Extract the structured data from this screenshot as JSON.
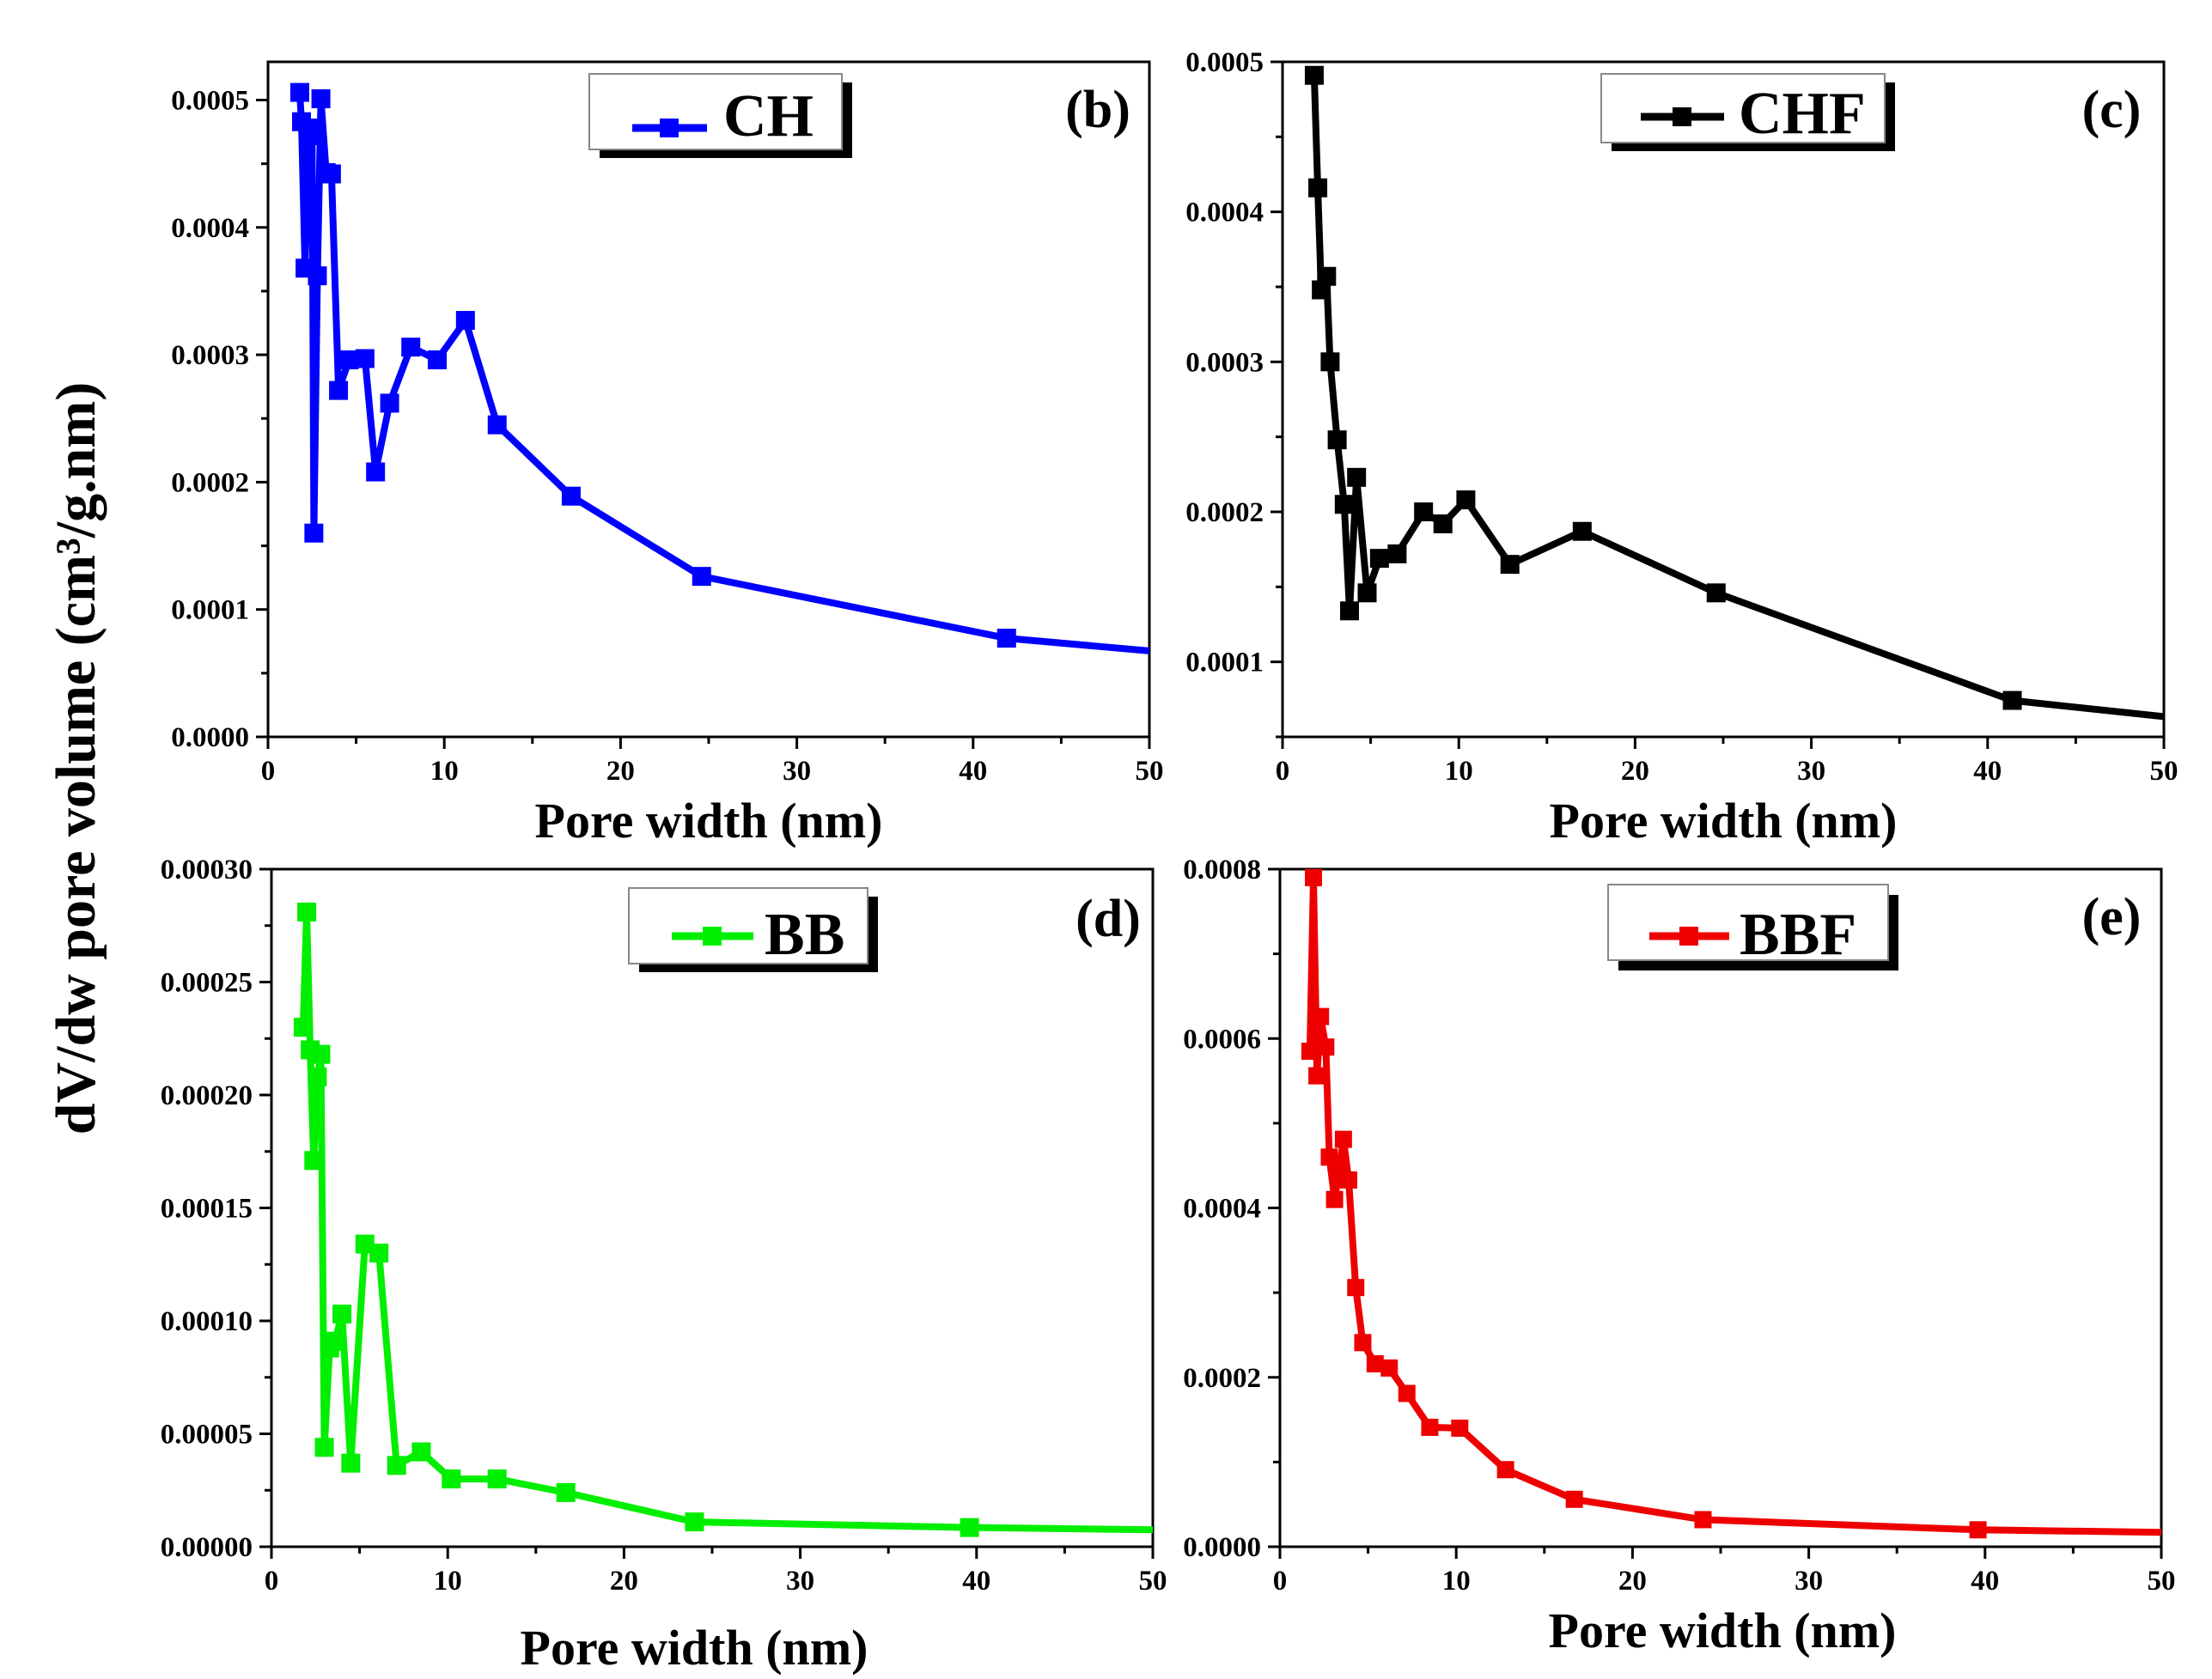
{
  "y_axis_title": "dV/dw pore volume (cm³/g.nm)",
  "chart_data": [
    {
      "type": "line",
      "tag": "(b)",
      "legend": "CH",
      "color": "#0000ff",
      "xlabel": "Pore width (nm)",
      "xlim": [
        0,
        50
      ],
      "ylim": [
        0,
        0.00053
      ],
      "xticks": [
        0,
        10,
        20,
        30,
        40,
        50
      ],
      "xtick_labels": [
        "0",
        "10",
        "20",
        "30",
        "40",
        "50"
      ],
      "yticks": [
        0,
        0.0001,
        0.0002,
        0.0003,
        0.0004,
        0.0005
      ],
      "ytick_labels": [
        "0.0000",
        "0.0001",
        "0.0002",
        "0.0003",
        "0.0004",
        "0.0005"
      ],
      "x": [
        1.8,
        1.9,
        2.1,
        2.3,
        2.5,
        2.6,
        2.8,
        3.0,
        3.3,
        3.6,
        4.0,
        4.6,
        5.5,
        6.1,
        6.9,
        8.1,
        9.6,
        11.2,
        13.0,
        17.2,
        24.6,
        41.9,
        50
      ],
      "y": [
        0.000506,
        0.000483,
        0.000368,
        0.000478,
        0.000472,
        0.00016,
        0.000362,
        0.000501,
        0.000443,
        0.000442,
        0.000272,
        0.000296,
        0.000297,
        0.000208,
        0.000262,
        0.000306,
        0.000296,
        0.000327,
        0.000245,
        0.000189,
        0.000126,
        7.75e-05,
        6.75e-05
      ],
      "marker_count": 22
    },
    {
      "type": "line",
      "tag": "(c)",
      "legend": "CHF",
      "color": "#000000",
      "xlabel": "Pore width (nm)",
      "xlim": [
        0,
        50
      ],
      "ylim": [
        5e-05,
        0.0005
      ],
      "xticks": [
        0,
        10,
        20,
        30,
        40,
        50
      ],
      "xtick_labels": [
        "0",
        "10",
        "20",
        "30",
        "40",
        "50"
      ],
      "yticks": [
        0.0001,
        0.0002,
        0.0003,
        0.0004,
        0.0005
      ],
      "ytick_labels": [
        "0.0001",
        "0.0002",
        "0.0003",
        "0.0004",
        "0.0005"
      ],
      "x": [
        1.8,
        2.0,
        2.2,
        2.5,
        2.7,
        3.1,
        3.5,
        3.8,
        4.2,
        4.8,
        5.5,
        6.5,
        8.0,
        9.1,
        10.4,
        12.9,
        17.0,
        24.6,
        41.4,
        50
      ],
      "y": [
        0.000491,
        0.000416,
        0.000348,
        0.000357,
        0.0003,
        0.000248,
        0.000205,
        0.000134,
        0.000223,
        0.000146,
        0.000169,
        0.000172,
        0.0002,
        0.000192,
        0.000208,
        0.000165,
        0.000187,
        0.000146,
        7.43e-05,
        6.35e-05
      ],
      "marker_count": 19
    },
    {
      "type": "line",
      "tag": "(d)",
      "legend": "BB",
      "color": "#00ee00",
      "xlabel": "Pore width (nm)",
      "xlim": [
        0,
        50
      ],
      "ylim": [
        0,
        0.0003
      ],
      "xticks": [
        0,
        10,
        20,
        30,
        40,
        50
      ],
      "xtick_labels": [
        "0",
        "10",
        "20",
        "30",
        "40",
        "50"
      ],
      "yticks": [
        0,
        5e-05,
        0.0001,
        0.00015,
        0.0002,
        0.00025,
        0.0003
      ],
      "ytick_labels": [
        "0.00000",
        "0.00005",
        "0.00010",
        "0.00015",
        "0.00020",
        "0.00025",
        "0.00030"
      ],
      "x": [
        1.8,
        2.0,
        2.2,
        2.4,
        2.6,
        2.8,
        3.0,
        3.3,
        3.6,
        4.0,
        4.5,
        5.3,
        6.1,
        7.1,
        8.5,
        10.2,
        12.8,
        16.7,
        24.0,
        39.6,
        50
      ],
      "y": [
        0.00023,
        0.000281,
        0.00022,
        0.000171,
        0.000208,
        0.000218,
        4.4e-05,
        8.8e-05,
        9.1e-05,
        0.000103,
        3.7e-05,
        0.000134,
        0.00013,
        3.6e-05,
        4.2e-05,
        3e-05,
        3e-05,
        2.4e-05,
        1.1e-05,
        8.5e-06,
        7.5e-06
      ],
      "marker_count": 20
    },
    {
      "type": "line",
      "tag": "(e)",
      "legend": "BBF",
      "color": "#ee0000",
      "xlabel": "Pore width (nm)",
      "xlim": [
        0,
        50
      ],
      "ylim": [
        0,
        0.0008
      ],
      "xticks": [
        0,
        10,
        20,
        30,
        40,
        50
      ],
      "xtick_labels": [
        "0",
        "10",
        "20",
        "30",
        "40",
        "50"
      ],
      "yticks": [
        0,
        0.0002,
        0.0004,
        0.0006,
        0.0008
      ],
      "ytick_labels": [
        "0.0000",
        "0.0002",
        "0.0004",
        "0.0006",
        "0.0008"
      ],
      "x": [
        1.7,
        1.9,
        2.1,
        2.3,
        2.6,
        2.8,
        3.1,
        3.4,
        3.6,
        3.9,
        4.3,
        4.7,
        5.4,
        6.2,
        7.2,
        8.5,
        10.2,
        12.8,
        16.7,
        24.0,
        39.6,
        50
      ],
      "y": [
        0.000585,
        0.00079,
        0.000556,
        0.000626,
        0.00059,
        0.00046,
        0.00041,
        0.00045,
        0.000481,
        0.000433,
        0.000306,
        0.000241,
        0.000216,
        0.000211,
        0.000181,
        0.000141,
        0.00014,
        9.1e-05,
        5.6e-05,
        3.2e-05,
        2e-05,
        1.7e-05
      ],
      "marker_count": 21
    }
  ]
}
